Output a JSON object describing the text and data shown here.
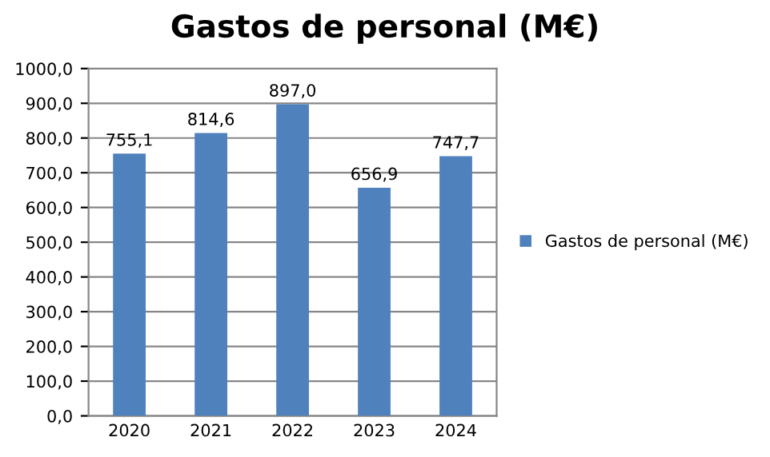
{
  "chart_data": {
    "type": "bar",
    "title": "Gastos de personal (M€)",
    "categories": [
      "2020",
      "2021",
      "2022",
      "2023",
      "2024"
    ],
    "series": [
      {
        "name": "Gastos de personal (M€)",
        "color": "#4f81bd",
        "values": [
          755.1,
          814.6,
          897.0,
          656.9,
          747.7
        ],
        "value_labels": [
          "755,1",
          "814,6",
          "897,0",
          "656,9",
          "747,7"
        ]
      }
    ],
    "ylim": [
      0,
      1000
    ],
    "yticks": [
      {
        "value": 0,
        "label": "0,0"
      },
      {
        "value": 100,
        "label": "100,0"
      },
      {
        "value": 200,
        "label": "200,0"
      },
      {
        "value": 300,
        "label": "300,0"
      },
      {
        "value": 400,
        "label": "400,0"
      },
      {
        "value": 500,
        "label": "500,0"
      },
      {
        "value": 600,
        "label": "600,0"
      },
      {
        "value": 700,
        "label": "700,0"
      },
      {
        "value": 800,
        "label": "800,0"
      },
      {
        "value": 900,
        "label": "900,0"
      },
      {
        "value": 1000,
        "label": "1000,0"
      }
    ],
    "grid": "y",
    "legend": "right"
  }
}
